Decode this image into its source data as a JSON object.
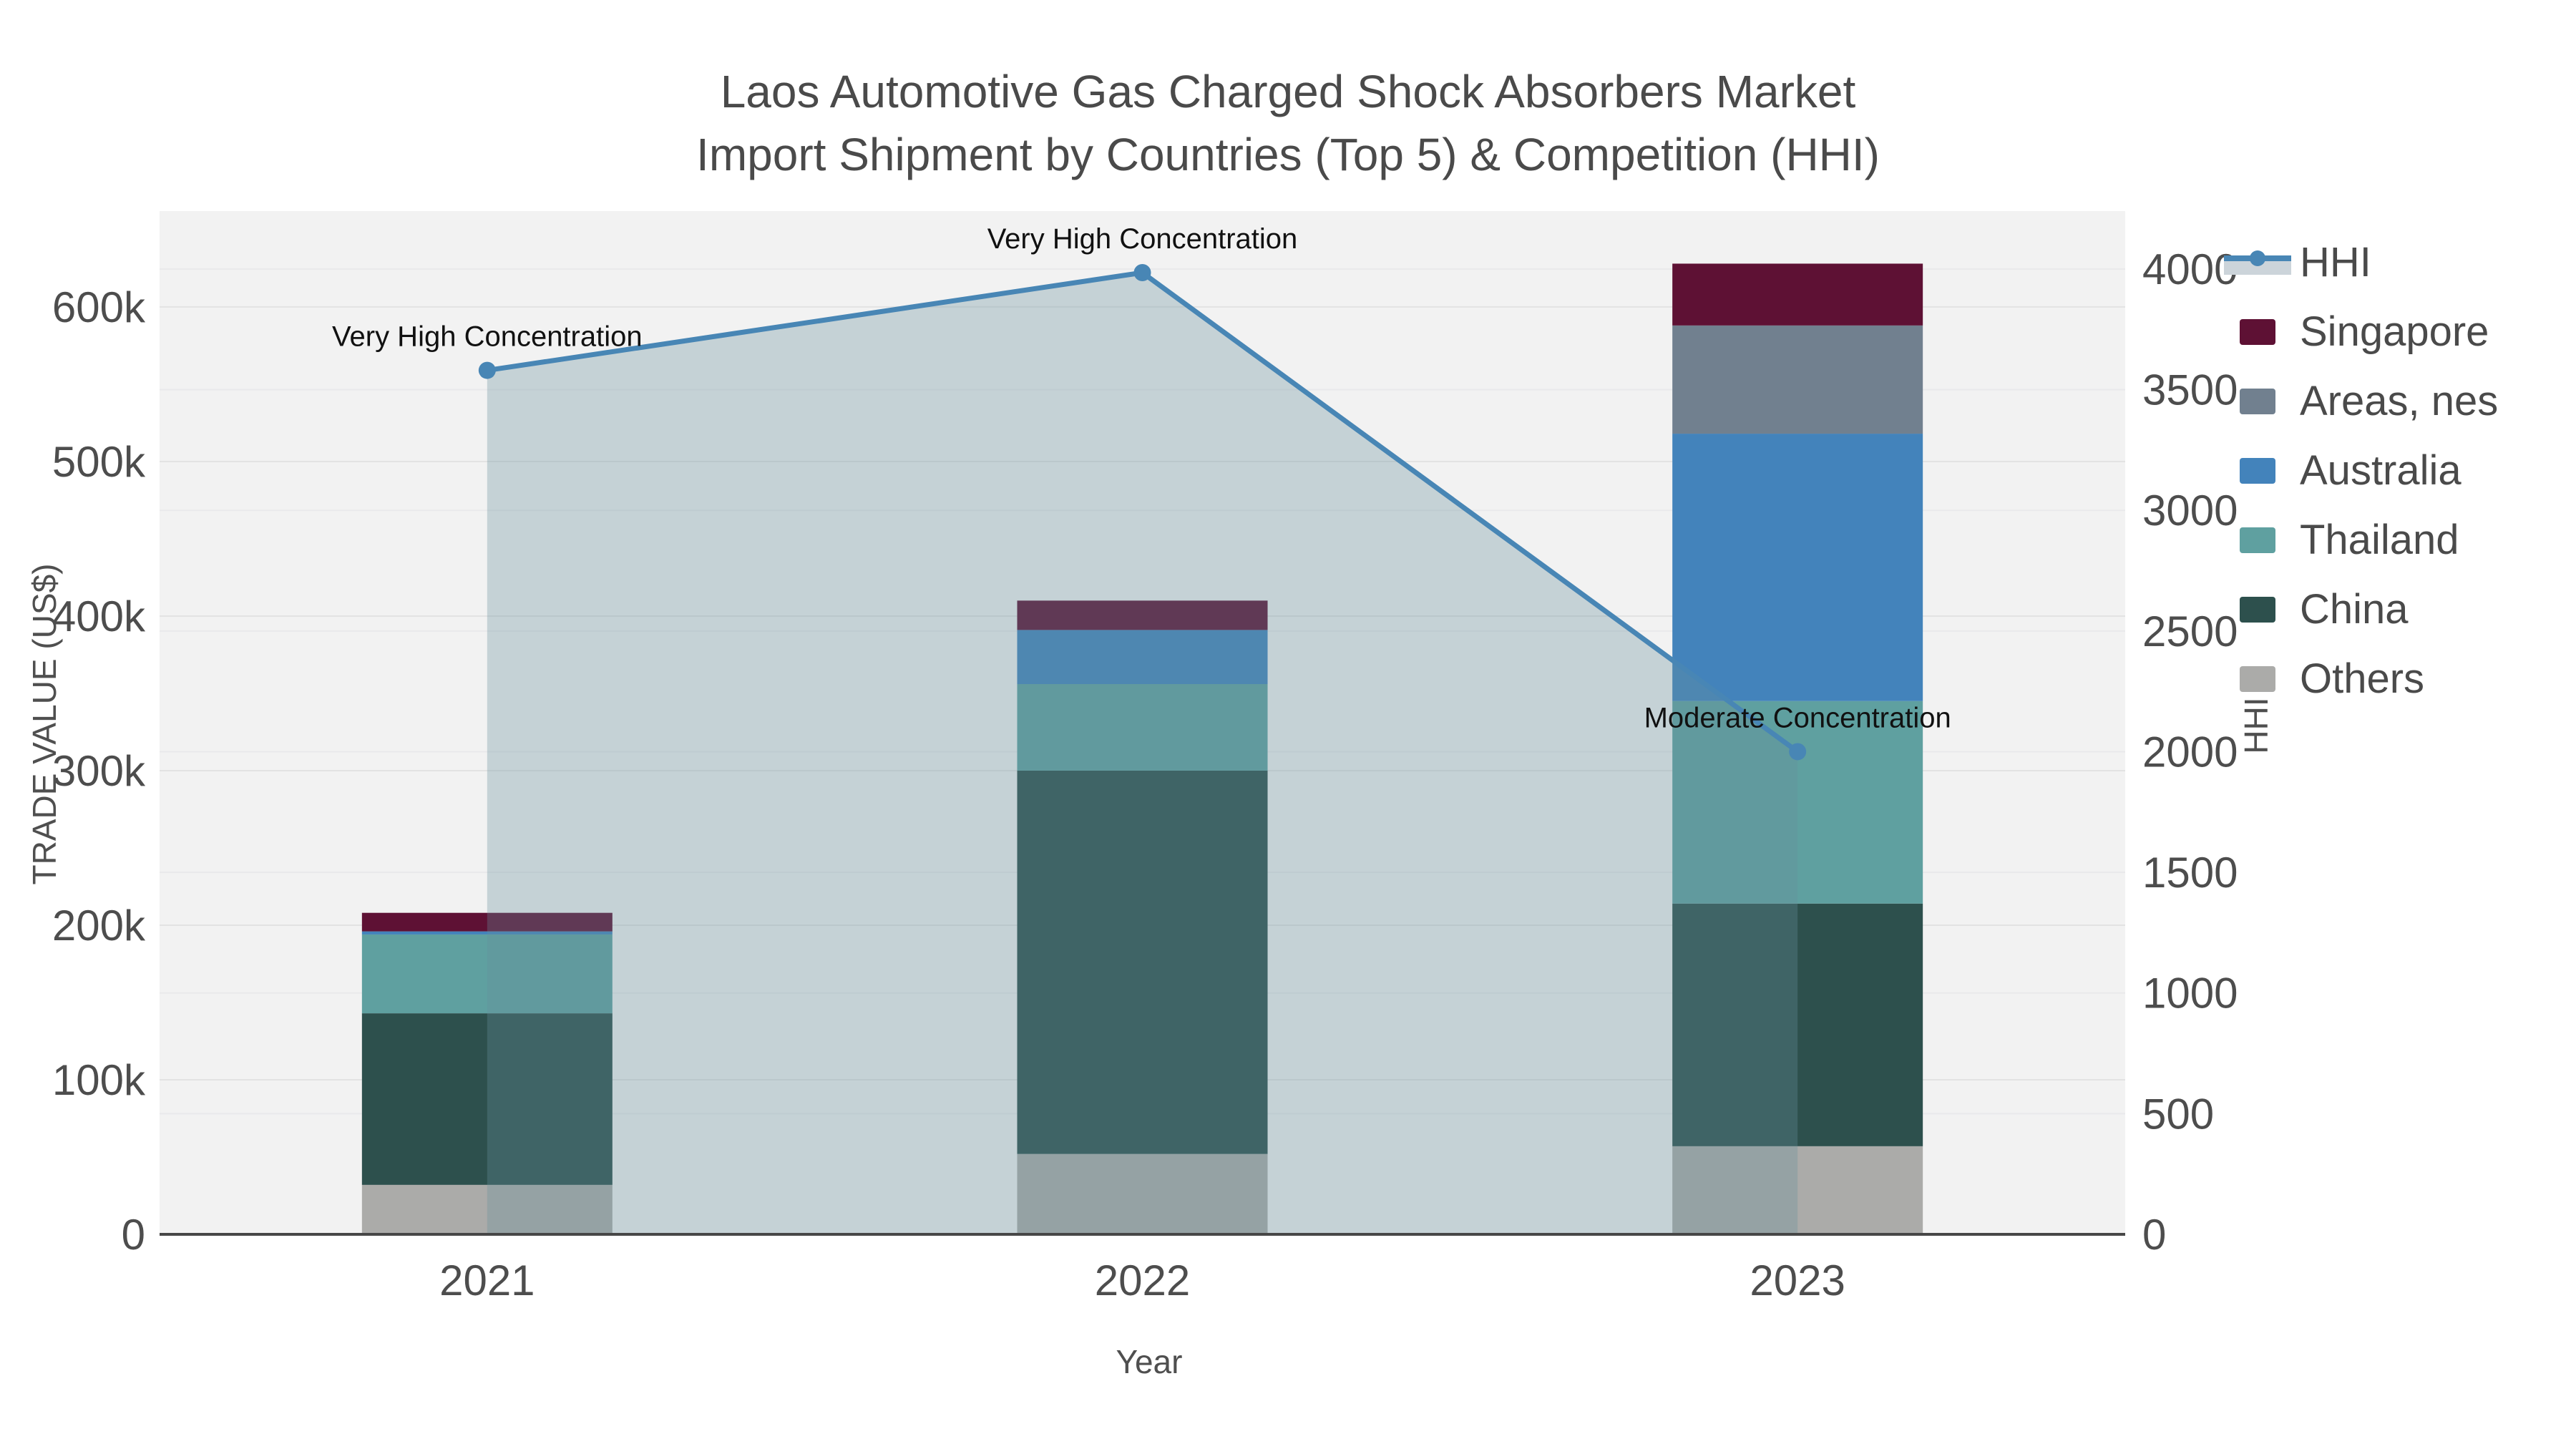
{
  "title": {
    "line1": "Laos Automotive Gas Charged Shock Absorbers Market",
    "line2": "Import Shipment by Countries (Top 5) & Competition (HHI)"
  },
  "chart_data": {
    "type": "combo: stacked bar (trade value, left axis) + line with area fill (HHI, right axis)",
    "categories": [
      "2021",
      "2022",
      "2023"
    ],
    "xlabel": "Year",
    "ylabel": "TRADE VALUE (US$)",
    "ylabel2": "HHI",
    "ylim": [
      0,
      662000
    ],
    "ylim2": [
      0,
      4240
    ],
    "grid": "on",
    "plot_bg": "#f2f2f2",
    "series": [
      {
        "name": "Others",
        "color": "#ababa9",
        "values": [
          32000,
          52000,
          57000
        ]
      },
      {
        "name": "China",
        "color": "#2d504d",
        "values": [
          111000,
          248000,
          157000
        ]
      },
      {
        "name": "Thailand",
        "color": "#5fa0a0",
        "values": [
          51000,
          56000,
          131000
        ]
      },
      {
        "name": "Australia",
        "color": "#4383bb",
        "values": [
          2000,
          35000,
          173000
        ]
      },
      {
        "name": "Areas, nes",
        "color": "#71808f",
        "values": [
          0,
          0,
          70000
        ]
      },
      {
        "name": "Singapore",
        "color": "#5e1134",
        "values": [
          12000,
          19000,
          40000
        ]
      }
    ],
    "bar_totals": [
      208000,
      410000,
      628000
    ],
    "line": {
      "name": "HHI",
      "color": "#4886b5",
      "area_fill": "rgba(104,143,156,0.32)",
      "axis": "right",
      "values": [
        3580,
        3985,
        2000
      ]
    },
    "annotations": [
      {
        "category": "2021",
        "text": "Very High Concentration"
      },
      {
        "category": "2022",
        "text": "Very High Concentration"
      },
      {
        "category": "2023",
        "text": "Moderate Concentration"
      }
    ],
    "yticks_left": [
      {
        "value": 0,
        "label": "0"
      },
      {
        "value": 100000,
        "label": "100k"
      },
      {
        "value": 200000,
        "label": "200k"
      },
      {
        "value": 300000,
        "label": "300k"
      },
      {
        "value": 400000,
        "label": "400k"
      },
      {
        "value": 500000,
        "label": "500k"
      },
      {
        "value": 600000,
        "label": "600k"
      }
    ],
    "yticks_right": [
      {
        "value": 0,
        "label": "0"
      },
      {
        "value": 500,
        "label": "500"
      },
      {
        "value": 1000,
        "label": "1000"
      },
      {
        "value": 1500,
        "label": "1500"
      },
      {
        "value": 2000,
        "label": "2000"
      },
      {
        "value": 2500,
        "label": "2500"
      },
      {
        "value": 3000,
        "label": "3000"
      },
      {
        "value": 3500,
        "label": "3500"
      },
      {
        "value": 4000,
        "label": "4000"
      }
    ]
  },
  "legend": {
    "items": [
      {
        "label": "HHI",
        "type": "line",
        "color": "#4886b5",
        "fill": "#ccd4da"
      },
      {
        "label": "Singapore",
        "type": "swatch",
        "color": "#5e1134"
      },
      {
        "label": "Areas, nes",
        "type": "swatch",
        "color": "#71808f"
      },
      {
        "label": "Australia",
        "type": "swatch",
        "color": "#4383bb"
      },
      {
        "label": "Thailand",
        "type": "swatch",
        "color": "#5fa0a0"
      },
      {
        "label": "China",
        "type": "swatch",
        "color": "#2d504d"
      },
      {
        "label": "Others",
        "type": "swatch",
        "color": "#ababa9"
      }
    ]
  }
}
